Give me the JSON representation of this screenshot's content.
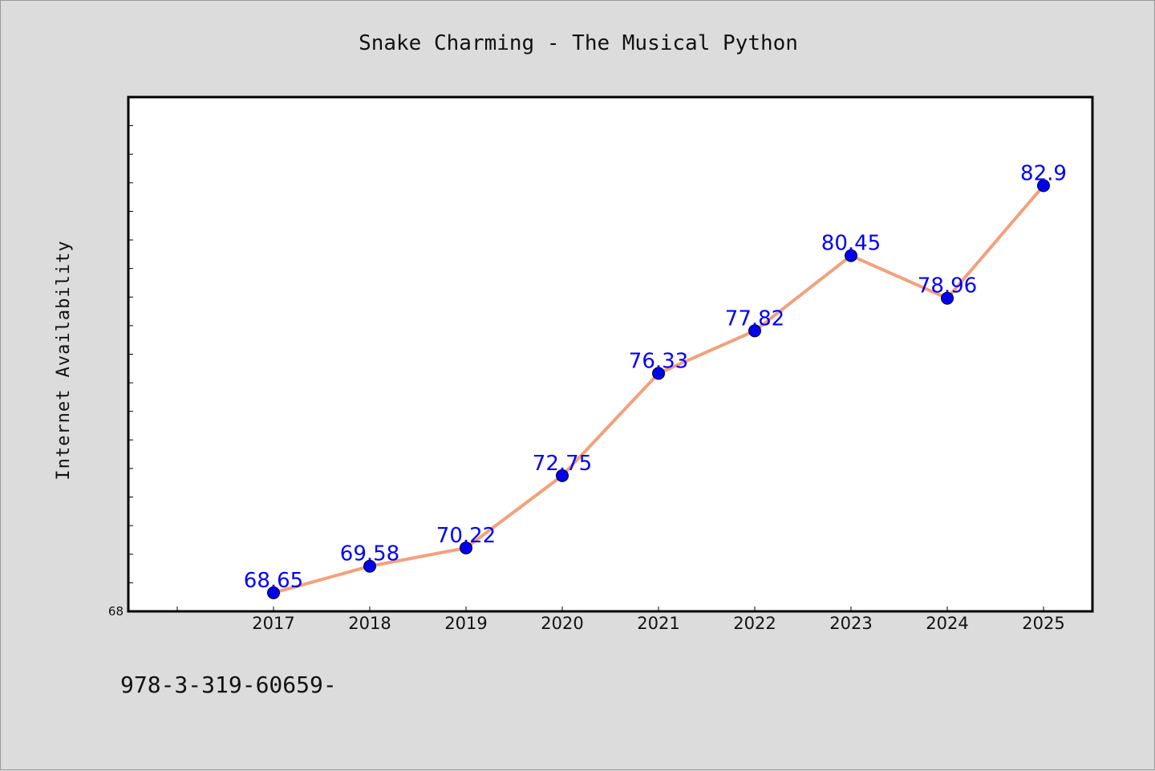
{
  "chart_data": {
    "type": "line",
    "title": "Snake Charming - The Musical Python",
    "xlabel": "",
    "ylabel": "Internet Availability",
    "categories": [
      "2017",
      "2018",
      "2019",
      "2020",
      "2021",
      "2022",
      "2023",
      "2024",
      "2025"
    ],
    "series": [
      {
        "values": [
          68.65,
          69.58,
          70.22,
          72.75,
          76.33,
          77.82,
          80.45,
          78.96,
          82.9
        ],
        "labels": [
          "68.65",
          "69.58",
          "70.22",
          "72.75",
          "76.33",
          "77.82",
          "80.45",
          "78.96",
          "82.9"
        ],
        "line_color": "#f4a07c",
        "marker_color": "#0000ee"
      }
    ],
    "ylim": [
      68,
      86
    ],
    "ytick_labels": [
      "68"
    ],
    "grid": false,
    "legend": "none"
  },
  "footer": {
    "text": "978-3-319-60659-"
  },
  "colors": {
    "background": "#dcdcdc",
    "plot_background": "#ffffff",
    "data_label": "#0000ff"
  }
}
